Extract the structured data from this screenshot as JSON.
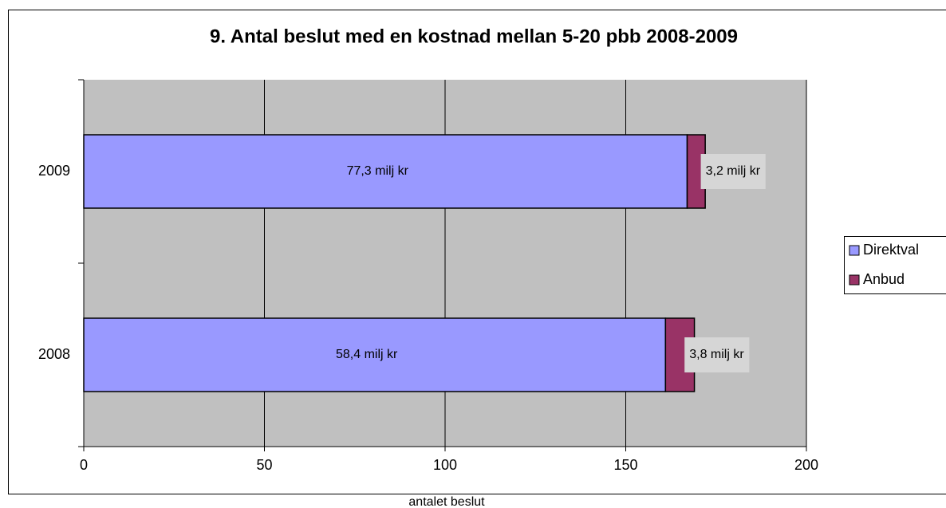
{
  "chart_data": {
    "type": "stacked_barh",
    "title": "9. Antal beslut med en kostnad mellan 5-20 pbb  2008-2009",
    "xlabel": "antalet beslut",
    "categories": [
      "2008",
      "2009"
    ],
    "series": [
      {
        "name": "Direktval",
        "color": "#9999ff",
        "values": [
          161,
          167
        ],
        "annotations": [
          "58,4 milj kr",
          "77,3 milj kr"
        ]
      },
      {
        "name": "Anbud",
        "color": "#993366",
        "values": [
          8,
          5
        ],
        "annotations": [
          "3,8 milj kr",
          "3,2 milj kr"
        ]
      }
    ],
    "xlim": [
      0,
      200
    ],
    "xticks": [
      0,
      50,
      100,
      150,
      200
    ],
    "grid": true,
    "legend": "right",
    "plot_background": "#c0c0c0"
  }
}
